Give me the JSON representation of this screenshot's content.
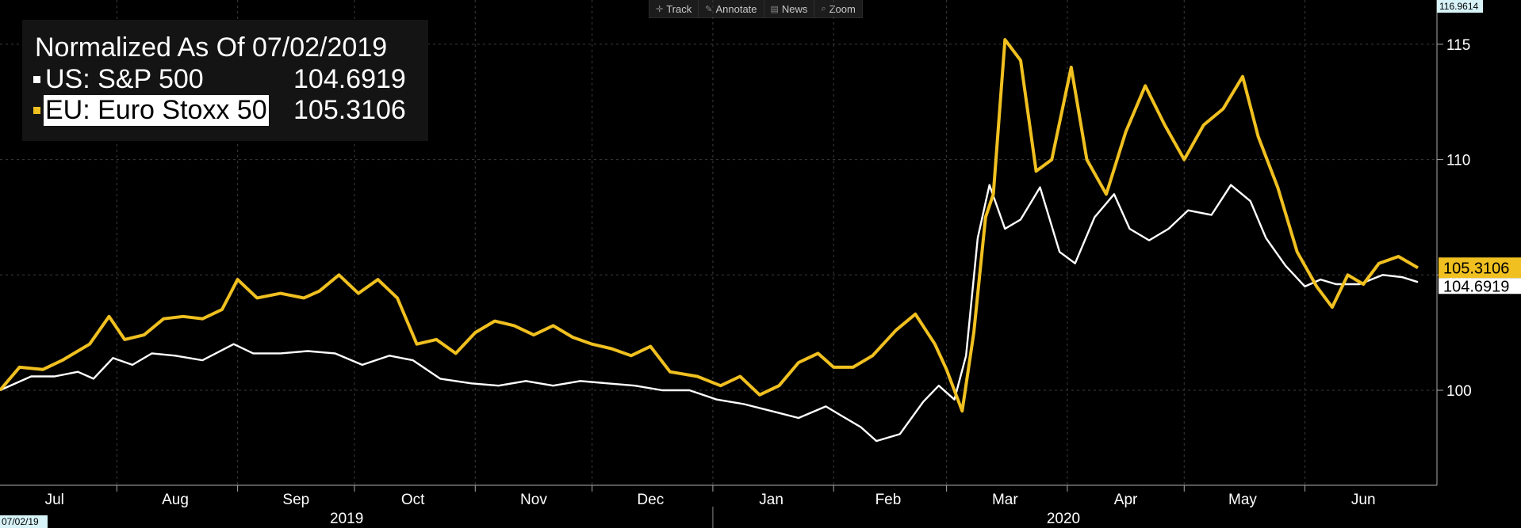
{
  "toolbar": {
    "items": [
      {
        "label": "Track",
        "icon": "crosshair-icon"
      },
      {
        "label": "Annotate",
        "icon": "pencil-icon"
      },
      {
        "label": "News",
        "icon": "news-icon"
      },
      {
        "label": "Zoom",
        "icon": "magnifier-icon"
      }
    ]
  },
  "legend": {
    "title": "Normalized As Of 07/02/2019",
    "series": [
      {
        "name": "US: S&P 500",
        "value": "104.6919",
        "color": "#ffffff"
      },
      {
        "name": "EU: Euro Stoxx 50",
        "value": "105.3106",
        "color": "#f0c020"
      }
    ]
  },
  "axis_corner_labels": {
    "max_value": "116.9614",
    "start_date": "07/02/19"
  },
  "colors": {
    "background": "#000000",
    "grid": "#3c3c3c",
    "sp500": "#ffffff",
    "stoxx": "#f0c020",
    "max_label_bg": "#d7f3f7"
  },
  "chart_data": {
    "type": "line",
    "title": "Normalized As Of 07/02/2019",
    "x_start": "2019-07-02",
    "x_end": "2020-06-30",
    "ylim": [
      96,
      117
    ],
    "y_ticks": [
      100,
      105,
      110,
      115
    ],
    "grid": true,
    "x_tick_labels": [
      {
        "label": "Jul",
        "date": "2019-07-16"
      },
      {
        "label": "Aug",
        "date": "2019-08-16"
      },
      {
        "label": "Sep",
        "date": "2019-09-16"
      },
      {
        "label": "Oct",
        "date": "2019-10-16"
      },
      {
        "label": "Nov",
        "date": "2019-11-16"
      },
      {
        "label": "Dec",
        "date": "2019-12-16"
      },
      {
        "label": "Jan",
        "date": "2020-01-16"
      },
      {
        "label": "Feb",
        "date": "2020-02-15"
      },
      {
        "label": "Mar",
        "date": "2020-03-16"
      },
      {
        "label": "Apr",
        "date": "2020-04-16"
      },
      {
        "label": "May",
        "date": "2020-05-16"
      },
      {
        "label": "Jun",
        "date": "2020-06-16"
      }
    ],
    "year_labels": [
      {
        "label": "2019",
        "date": "2019-09-29"
      },
      {
        "label": "2020",
        "date": "2020-03-31"
      }
    ],
    "year_divider": "2020-01-01",
    "last_value_labels": [
      {
        "series": "EU: Euro Stoxx 50",
        "value": "105.3106"
      },
      {
        "series": "US: S&P 500",
        "value": "104.6919"
      }
    ],
    "series": [
      {
        "name": "US: S&P 500",
        "color": "#ffffff",
        "points": [
          [
            "2019-07-02",
            100.0
          ],
          [
            "2019-07-10",
            100.6
          ],
          [
            "2019-07-16",
            100.6
          ],
          [
            "2019-07-22",
            100.8
          ],
          [
            "2019-07-26",
            100.5
          ],
          [
            "2019-07-31",
            101.4
          ],
          [
            "2019-08-05",
            101.1
          ],
          [
            "2019-08-10",
            101.6
          ],
          [
            "2019-08-16",
            101.5
          ],
          [
            "2019-08-23",
            101.3
          ],
          [
            "2019-08-31",
            102.0
          ],
          [
            "2019-09-05",
            101.6
          ],
          [
            "2019-09-12",
            101.6
          ],
          [
            "2019-09-19",
            101.7
          ],
          [
            "2019-09-26",
            101.6
          ],
          [
            "2019-10-03",
            101.1
          ],
          [
            "2019-10-10",
            101.5
          ],
          [
            "2019-10-16",
            101.3
          ],
          [
            "2019-10-23",
            100.5
          ],
          [
            "2019-10-31",
            100.3
          ],
          [
            "2019-11-07",
            100.2
          ],
          [
            "2019-11-14",
            100.4
          ],
          [
            "2019-11-21",
            100.2
          ],
          [
            "2019-11-28",
            100.4
          ],
          [
            "2019-12-05",
            100.3
          ],
          [
            "2019-12-12",
            100.2
          ],
          [
            "2019-12-19",
            100.0
          ],
          [
            "2019-12-26",
            100.0
          ],
          [
            "2020-01-02",
            99.6
          ],
          [
            "2020-01-09",
            99.4
          ],
          [
            "2020-01-16",
            99.1
          ],
          [
            "2020-01-23",
            98.8
          ],
          [
            "2020-01-30",
            99.3
          ],
          [
            "2020-02-03",
            98.9
          ],
          [
            "2020-02-08",
            98.4
          ],
          [
            "2020-02-12",
            97.8
          ],
          [
            "2020-02-18",
            98.1
          ],
          [
            "2020-02-24",
            99.5
          ],
          [
            "2020-02-28",
            100.2
          ],
          [
            "2020-03-03",
            99.6
          ],
          [
            "2020-03-06",
            101.5
          ],
          [
            "2020-03-09",
            106.6
          ],
          [
            "2020-03-12",
            108.9
          ],
          [
            "2020-03-16",
            107.0
          ],
          [
            "2020-03-20",
            107.4
          ],
          [
            "2020-03-25",
            108.8
          ],
          [
            "2020-03-30",
            106.0
          ],
          [
            "2020-04-03",
            105.5
          ],
          [
            "2020-04-08",
            107.5
          ],
          [
            "2020-04-13",
            108.5
          ],
          [
            "2020-04-17",
            107.0
          ],
          [
            "2020-04-22",
            106.5
          ],
          [
            "2020-04-27",
            107.0
          ],
          [
            "2020-05-02",
            107.8
          ],
          [
            "2020-05-08",
            107.6
          ],
          [
            "2020-05-13",
            108.9
          ],
          [
            "2020-05-18",
            108.2
          ],
          [
            "2020-05-22",
            106.6
          ],
          [
            "2020-05-27",
            105.4
          ],
          [
            "2020-06-01",
            104.5
          ],
          [
            "2020-06-05",
            104.8
          ],
          [
            "2020-06-09",
            104.6
          ],
          [
            "2020-06-15",
            104.6
          ],
          [
            "2020-06-21",
            105.0
          ],
          [
            "2020-06-26",
            104.9
          ],
          [
            "2020-06-30",
            104.69
          ]
        ]
      },
      {
        "name": "EU: Euro Stoxx 50",
        "color": "#f0c020",
        "points": [
          [
            "2019-07-02",
            100.0
          ],
          [
            "2019-07-07",
            101.0
          ],
          [
            "2019-07-13",
            100.9
          ],
          [
            "2019-07-18",
            101.3
          ],
          [
            "2019-07-25",
            102.0
          ],
          [
            "2019-07-30",
            103.2
          ],
          [
            "2019-08-03",
            102.2
          ],
          [
            "2019-08-08",
            102.4
          ],
          [
            "2019-08-13",
            103.1
          ],
          [
            "2019-08-18",
            103.2
          ],
          [
            "2019-08-23",
            103.1
          ],
          [
            "2019-08-28",
            103.5
          ],
          [
            "2019-09-01",
            104.8
          ],
          [
            "2019-09-06",
            104.0
          ],
          [
            "2019-09-12",
            104.2
          ],
          [
            "2019-09-18",
            104.0
          ],
          [
            "2019-09-22",
            104.3
          ],
          [
            "2019-09-27",
            105.0
          ],
          [
            "2019-10-02",
            104.2
          ],
          [
            "2019-10-07",
            104.8
          ],
          [
            "2019-10-12",
            104.0
          ],
          [
            "2019-10-17",
            102.0
          ],
          [
            "2019-10-22",
            102.2
          ],
          [
            "2019-10-27",
            101.6
          ],
          [
            "2019-11-01",
            102.5
          ],
          [
            "2019-11-06",
            103.0
          ],
          [
            "2019-11-11",
            102.8
          ],
          [
            "2019-11-16",
            102.4
          ],
          [
            "2019-11-21",
            102.8
          ],
          [
            "2019-11-26",
            102.3
          ],
          [
            "2019-12-01",
            102.0
          ],
          [
            "2019-12-06",
            101.8
          ],
          [
            "2019-12-11",
            101.5
          ],
          [
            "2019-12-16",
            101.9
          ],
          [
            "2019-12-21",
            100.8
          ],
          [
            "2019-12-28",
            100.6
          ],
          [
            "2020-01-03",
            100.2
          ],
          [
            "2020-01-08",
            100.6
          ],
          [
            "2020-01-13",
            99.8
          ],
          [
            "2020-01-18",
            100.2
          ],
          [
            "2020-01-23",
            101.2
          ],
          [
            "2020-01-28",
            101.6
          ],
          [
            "2020-02-01",
            101.0
          ],
          [
            "2020-02-06",
            101.0
          ],
          [
            "2020-02-11",
            101.5
          ],
          [
            "2020-02-17",
            102.6
          ],
          [
            "2020-02-22",
            103.3
          ],
          [
            "2020-02-27",
            102.0
          ],
          [
            "2020-03-01",
            100.9
          ],
          [
            "2020-03-05",
            99.1
          ],
          [
            "2020-03-08",
            102.5
          ],
          [
            "2020-03-11",
            107.5
          ],
          [
            "2020-03-13",
            108.5
          ],
          [
            "2020-03-16",
            115.2
          ],
          [
            "2020-03-20",
            114.3
          ],
          [
            "2020-03-24",
            109.5
          ],
          [
            "2020-03-28",
            110.0
          ],
          [
            "2020-04-02",
            114.0
          ],
          [
            "2020-04-06",
            110.0
          ],
          [
            "2020-04-11",
            108.5
          ],
          [
            "2020-04-16",
            111.2
          ],
          [
            "2020-04-21",
            113.2
          ],
          [
            "2020-04-26",
            111.5
          ],
          [
            "2020-05-01",
            110.0
          ],
          [
            "2020-05-06",
            111.5
          ],
          [
            "2020-05-11",
            112.2
          ],
          [
            "2020-05-16",
            113.6
          ],
          [
            "2020-05-20",
            111.0
          ],
          [
            "2020-05-25",
            108.8
          ],
          [
            "2020-05-30",
            106.0
          ],
          [
            "2020-06-04",
            104.5
          ],
          [
            "2020-06-08",
            103.6
          ],
          [
            "2020-06-12",
            105.0
          ],
          [
            "2020-06-16",
            104.6
          ],
          [
            "2020-06-20",
            105.5
          ],
          [
            "2020-06-25",
            105.8
          ],
          [
            "2020-06-30",
            105.31
          ]
        ]
      }
    ]
  }
}
